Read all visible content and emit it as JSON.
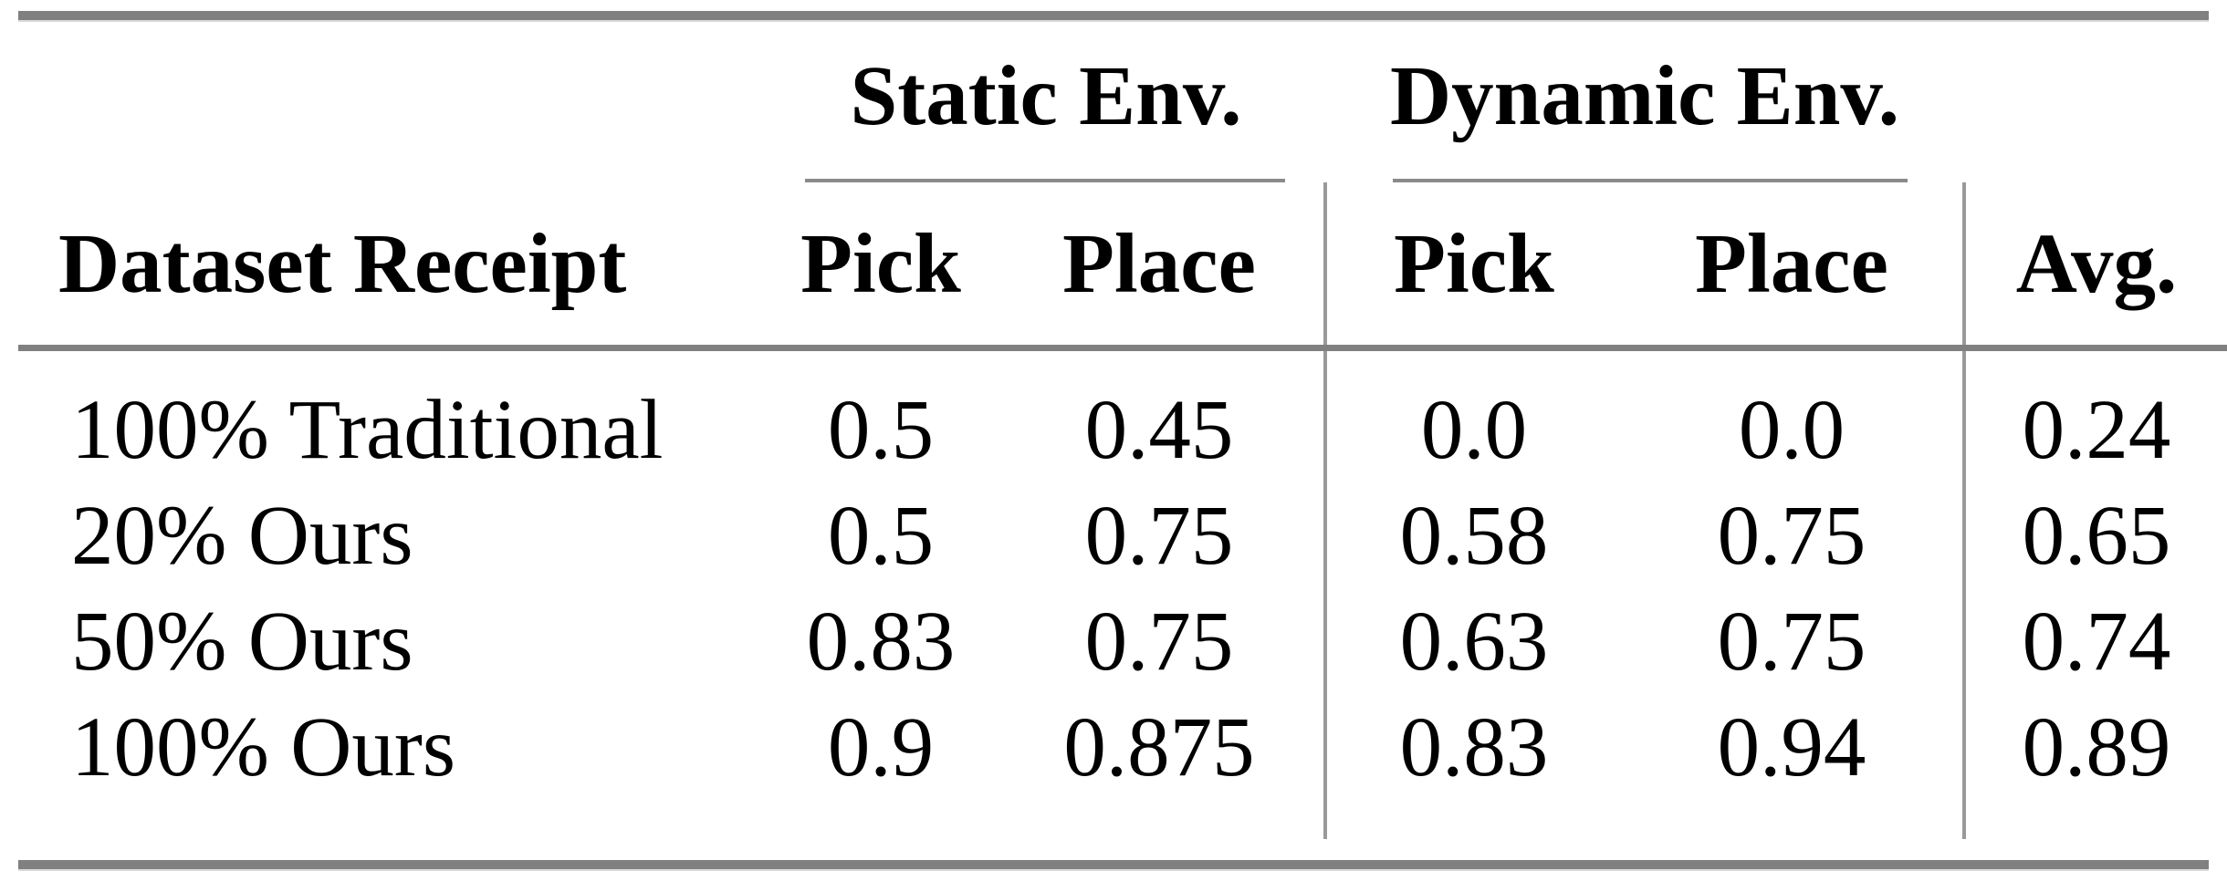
{
  "table": {
    "group_headers": [
      "Static Env.",
      "Dynamic Env."
    ],
    "column_headers": [
      "Dataset Receipt",
      "Pick",
      "Place",
      "Pick",
      "Place",
      "Avg."
    ],
    "rows": [
      {
        "label": "100% Traditional",
        "values": [
          "0.5",
          "0.45",
          "0.0",
          "0.0",
          "0.24"
        ]
      },
      {
        "label": "20% Ours",
        "values": [
          "0.5",
          "0.75",
          "0.58",
          "0.75",
          "0.65"
        ]
      },
      {
        "label": "50% Ours",
        "values": [
          "0.83",
          "0.75",
          "0.63",
          "0.75",
          "0.74"
        ]
      },
      {
        "label": "100% Ours",
        "values": [
          "0.9",
          "0.875",
          "0.83",
          "0.94",
          "0.89"
        ]
      }
    ]
  },
  "chart_data": {
    "type": "table",
    "columns": [
      "Dataset Receipt",
      "Static Env. Pick",
      "Static Env. Place",
      "Dynamic Env. Pick",
      "Dynamic Env. Place",
      "Avg."
    ],
    "rows": [
      [
        "100% Traditional",
        0.5,
        0.45,
        0.0,
        0.0,
        0.24
      ],
      [
        "20% Ours",
        0.5,
        0.75,
        0.58,
        0.75,
        0.65
      ],
      [
        "50% Ours",
        0.83,
        0.75,
        0.63,
        0.75,
        0.74
      ],
      [
        "100% Ours",
        0.9,
        0.875,
        0.83,
        0.94,
        0.89
      ]
    ]
  },
  "colors": {
    "rule_heavy": "#808080",
    "rule_light": "#8a8a8a",
    "vertical_rule": "#999999",
    "text": "#000000",
    "background": "#ffffff"
  }
}
